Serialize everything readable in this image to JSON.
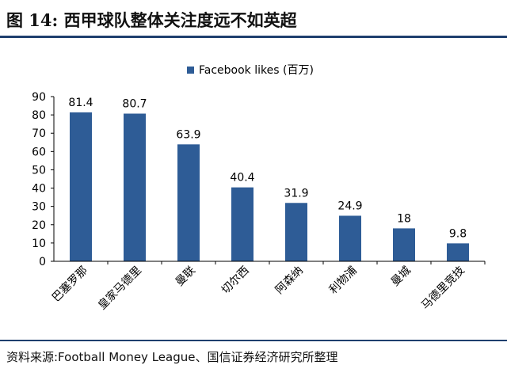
{
  "figure": {
    "title": "图 14:  西甲球队整体关注度远不如英超",
    "source": "资料来源:Football Money League、国信证券经济研究所整理"
  },
  "colors": {
    "bar": "#2e5c96",
    "rule": "#1f3f6e",
    "axis": "#000000"
  },
  "chart_data": {
    "type": "bar",
    "categories": [
      "巴塞罗那",
      "皇家马德里",
      "曼联",
      "切尔西",
      "阿森纳",
      "利物浦",
      "曼城",
      "马德里竞技"
    ],
    "series": [
      {
        "name": "Facebook likes (百万)",
        "values": [
          81.4,
          80.7,
          63.9,
          40.4,
          31.9,
          24.9,
          18,
          9.8
        ]
      }
    ],
    "data_labels": [
      "81.4",
      "80.7",
      "63.9",
      "40.4",
      "31.9",
      "24.9",
      "18",
      "9.8"
    ],
    "y_ticks": [
      "0",
      "10",
      "20",
      "30",
      "40",
      "50",
      "60",
      "70",
      "80",
      "90"
    ],
    "ylim": [
      0,
      90
    ],
    "grid": false,
    "legend_position": "top-center",
    "xlabel": "",
    "ylabel": ""
  }
}
